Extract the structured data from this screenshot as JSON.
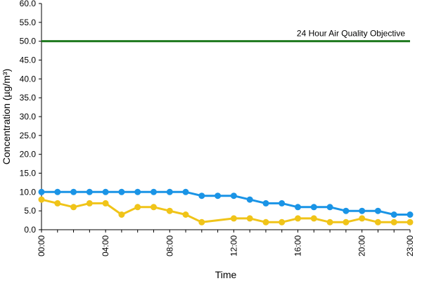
{
  "chart_data": {
    "type": "line",
    "xlabel": "Time",
    "ylabel": "Concentration (µg/m³)",
    "ylim": [
      0,
      60
    ],
    "ytick_step": 5,
    "x": [
      0,
      1,
      2,
      3,
      4,
      5,
      6,
      7,
      8,
      9,
      10,
      11,
      12,
      13,
      14,
      15,
      16,
      17,
      18,
      19,
      20,
      21,
      22,
      23
    ],
    "xticks": [
      {
        "x": 0,
        "label": "00:00"
      },
      {
        "x": 4,
        "label": "04:00"
      },
      {
        "x": 8,
        "label": "08:00"
      },
      {
        "x": 12,
        "label": "12:00"
      },
      {
        "x": 16,
        "label": "16:00"
      },
      {
        "x": 20,
        "label": "20:00"
      },
      {
        "x": 23,
        "label": "23:00"
      }
    ],
    "series": [
      {
        "color": "#1a94e6",
        "values": [
          10,
          10,
          10,
          10,
          10,
          10,
          10,
          10,
          10,
          10,
          9,
          9,
          9,
          8,
          7,
          7,
          6,
          6,
          6,
          5,
          5,
          5,
          4,
          4
        ]
      },
      {
        "color": "#f0c419",
        "values": [
          8,
          7,
          6,
          7,
          7,
          4,
          6,
          6,
          5,
          4,
          2,
          null,
          3,
          3,
          2,
          2,
          3,
          3,
          2,
          2,
          3,
          2,
          2,
          2
        ]
      }
    ],
    "objective": {
      "value": 50,
      "label": "24 Hour Air Quality Objective",
      "color": "#1f7a1f"
    },
    "grid": false,
    "legend": "none"
  }
}
